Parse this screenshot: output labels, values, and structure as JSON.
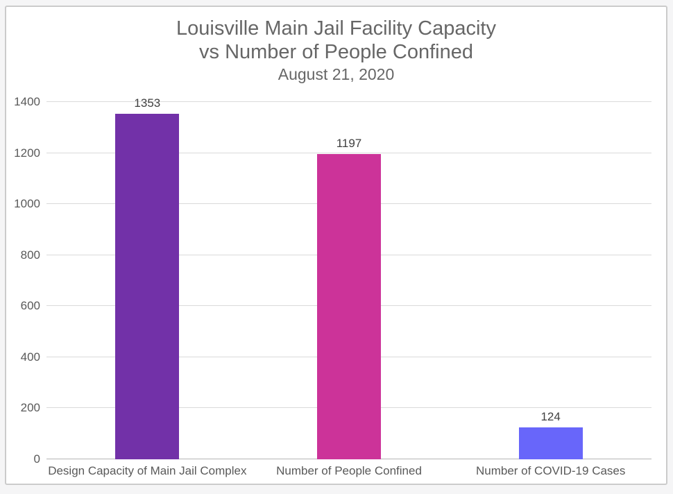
{
  "page": {
    "outer_background": "#f5f5f6",
    "card_background": "#ffffff",
    "card_border_color": "#cbcbcb"
  },
  "chart_data": {
    "type": "bar",
    "title_line1": "Louisville Main Jail Facility Capacity",
    "title_line2": "vs Number of People Confined",
    "subtitle": "August 21, 2020",
    "categories": [
      "Design Capacity of Main Jail Complex",
      "Number of People Confined",
      "Number of COVID-19 Cases"
    ],
    "values": [
      1353,
      1197,
      124
    ],
    "value_labels": [
      "1353",
      "1197",
      "124"
    ],
    "bar_colors": [
      "#7231A8",
      "#CC3399",
      "#6866FA"
    ],
    "ylim": [
      0,
      1400
    ],
    "yticks": [
      0,
      200,
      400,
      600,
      800,
      1000,
      1200,
      1400
    ],
    "ytick_step": 200,
    "grid": true,
    "legend": "none",
    "xlabel": "",
    "ylabel": "",
    "title_color": "#666666",
    "axis_text_color": "#595959",
    "value_label_color": "#3f3f3f",
    "gridline_color": "#dadada",
    "zero_line_color": "#b5b5b5"
  }
}
